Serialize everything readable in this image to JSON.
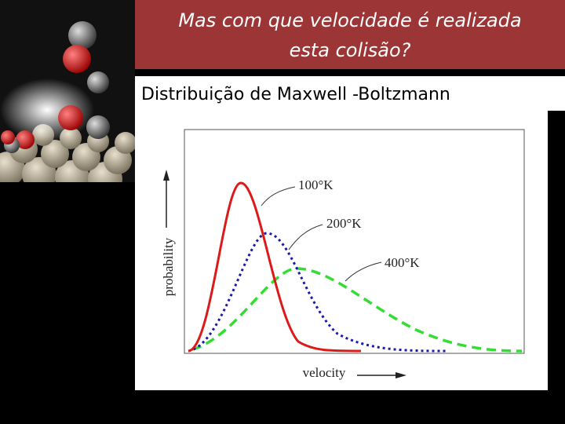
{
  "header": {
    "title_lines": [
      "Mas com que velocidade é realizada",
      "esta colisão?"
    ]
  },
  "subtitle": "Distribuição de Maxwell -Boltzmann",
  "figure": {
    "y_axis_label": "probability",
    "x_axis_label": "velocity",
    "curve_labels": [
      "100°K",
      "200°K",
      "400°K"
    ]
  }
}
